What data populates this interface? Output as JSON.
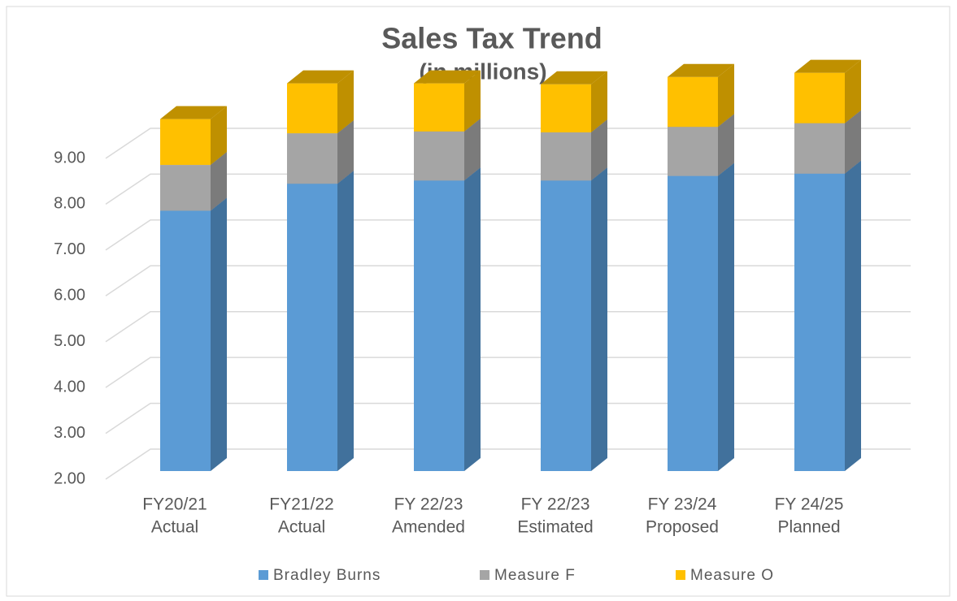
{
  "chart_data": {
    "type": "bar3d_stacked",
    "title": "Sales Tax Trend",
    "subtitle": "(in millions)",
    "categories": [
      [
        "FY20/21",
        "Actual"
      ],
      [
        "FY21/22",
        "Actual"
      ],
      [
        "FY 22/23",
        "Amended"
      ],
      [
        "FY 22/23",
        "Estimated"
      ],
      [
        "FY 23/24",
        "Proposed"
      ],
      [
        "FY 24/25",
        "Planned"
      ]
    ],
    "series": [
      {
        "name": "Bradley Burns",
        "color": "#5b9bd5",
        "side": "#41719c",
        "values": [
          5.68,
          6.27,
          6.34,
          6.34,
          6.44,
          6.49
        ]
      },
      {
        "name": "Measure F",
        "color": "#a5a5a5",
        "side": "#7b7b7b",
        "values": [
          1.0,
          1.1,
          1.07,
          1.05,
          1.07,
          1.1
        ]
      },
      {
        "name": "Measure O",
        "color": "#ffc000",
        "side": "#bf9000",
        "values": [
          1.0,
          1.09,
          1.05,
          1.05,
          1.09,
          1.1
        ]
      }
    ],
    "ylim": [
      2,
      9
    ],
    "yticks": [
      {
        "value": 2,
        "label": "2.00"
      },
      {
        "value": 3,
        "label": "3.00"
      },
      {
        "value": 4,
        "label": "4.00"
      },
      {
        "value": 5,
        "label": "5.00"
      },
      {
        "value": 6,
        "label": "6.00"
      },
      {
        "value": 7,
        "label": "7.00"
      },
      {
        "value": 8,
        "label": "8.00"
      },
      {
        "value": 9,
        "label": "9.00"
      }
    ],
    "grid": true,
    "legend": "bottom"
  }
}
